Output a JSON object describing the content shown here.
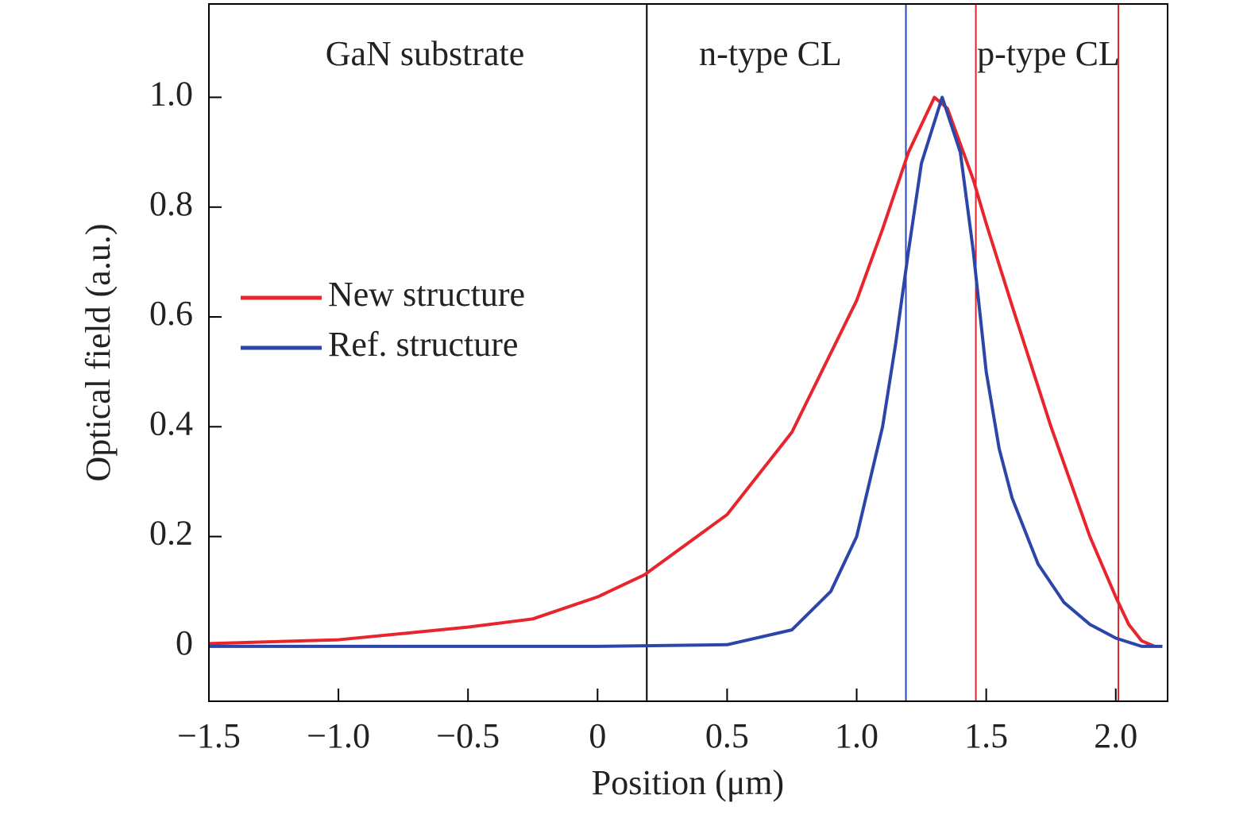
{
  "chart_data": {
    "type": "line",
    "x_label": "Position (μm)",
    "y_label": "Optical field (a.u.)",
    "xlim": [
      -1.5,
      2.2
    ],
    "ylim": [
      -0.1,
      1.17
    ],
    "xticks": [
      {
        "value": -1.5,
        "label": "−1.5"
      },
      {
        "value": -1.0,
        "label": "−1.0"
      },
      {
        "value": -0.5,
        "label": "−0.5"
      },
      0,
      0.5,
      {
        "value": 1.0,
        "label": "1.0"
      },
      1.5,
      {
        "value": 2.0,
        "label": "2.0"
      }
    ],
    "yticks": [
      0,
      0.2,
      0.4,
      0.6,
      0.8,
      {
        "value": 1.0,
        "label": "1.0"
      }
    ],
    "grid": false,
    "legend": "center left",
    "regions": [
      "GaN substrate",
      "n-type CL",
      "p-type CL"
    ],
    "vlines": [
      {
        "x": 0.19,
        "color": "#000000"
      },
      {
        "x": 1.19,
        "color": "#2a4aa8"
      },
      {
        "x": 1.46,
        "color": "#e0242c"
      },
      {
        "x": 2.01,
        "color": "#e0242c"
      }
    ],
    "series": [
      {
        "name": "New structure",
        "color": "#e8252d",
        "x": [
          -1.5,
          -1.0,
          -0.5,
          -0.25,
          0,
          0.18,
          0.5,
          0.75,
          1.0,
          1.1,
          1.2,
          1.3,
          1.35,
          1.45,
          1.5,
          1.6,
          1.75,
          1.9,
          2.0,
          2.05,
          2.1,
          2.15
        ],
        "values": [
          0.005,
          0.012,
          0.035,
          0.05,
          0.09,
          0.13,
          0.24,
          0.39,
          0.63,
          0.76,
          0.9,
          1.0,
          0.98,
          0.85,
          0.77,
          0.62,
          0.4,
          0.2,
          0.09,
          0.04,
          0.01,
          0.0
        ]
      },
      {
        "name": "Ref. structure",
        "color": "#2b46a8",
        "x": [
          -1.5,
          0,
          0.5,
          0.75,
          0.9,
          1.0,
          1.1,
          1.15,
          1.2,
          1.25,
          1.33,
          1.4,
          1.45,
          1.5,
          1.55,
          1.6,
          1.7,
          1.8,
          1.9,
          2.0,
          2.1,
          2.18
        ],
        "values": [
          0,
          0,
          0.003,
          0.03,
          0.1,
          0.2,
          0.4,
          0.55,
          0.72,
          0.88,
          1.0,
          0.9,
          0.72,
          0.5,
          0.36,
          0.27,
          0.15,
          0.08,
          0.04,
          0.015,
          0.0,
          0.0
        ]
      }
    ]
  }
}
